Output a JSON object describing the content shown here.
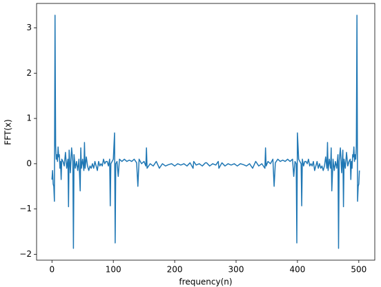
{
  "chart_data": {
    "type": "line",
    "xlabel": "frequency(n)",
    "ylabel": "FFT(x)",
    "xlim": [
      -25.05,
      526.05
    ],
    "ylim": [
      -2.13,
      3.54
    ],
    "xticks": [
      0,
      100,
      200,
      300,
      400,
      500
    ],
    "yticks": [
      {
        "value": -2,
        "label": "−2"
      },
      {
        "value": -1,
        "label": "−1"
      },
      0,
      1,
      2,
      3
    ],
    "series": [
      {
        "color": "#1f77b4",
        "x": [
          0,
          1,
          2,
          3,
          4,
          5,
          6,
          7,
          8,
          9,
          10,
          11,
          12,
          13,
          14,
          15,
          16,
          18,
          20,
          22,
          24,
          26,
          27,
          28,
          30,
          32,
          34,
          35,
          36,
          38,
          40,
          42,
          44,
          46,
          47,
          48,
          50,
          52,
          53,
          54,
          56,
          58,
          60,
          62,
          64,
          66,
          68,
          70,
          72,
          74,
          76,
          78,
          80,
          82,
          84,
          86,
          88,
          90,
          92,
          94,
          95,
          96,
          98,
          100,
          102,
          103,
          104,
          106,
          108,
          110,
          114,
          118,
          122,
          126,
          130,
          134,
          138,
          140,
          142,
          146,
          150,
          153,
          154,
          155,
          160,
          165,
          170,
          175,
          180,
          185,
          190,
          195,
          200,
          205,
          210,
          215,
          220,
          225,
          230,
          231,
          235,
          240,
          245,
          250,
          252,
          257,
          262,
          267,
          271,
          272,
          277,
          282,
          287,
          292,
          297,
          302,
          307,
          312,
          317,
          322,
          327,
          332,
          337,
          342,
          347,
          348,
          349,
          352,
          356,
          360,
          362,
          364,
          368,
          372,
          376,
          380,
          384,
          388,
          392,
          394,
          396,
          398,
          399,
          400,
          402,
          404,
          406,
          407,
          408,
          410,
          412,
          414,
          416,
          418,
          420,
          422,
          424,
          426,
          428,
          430,
          432,
          434,
          436,
          438,
          440,
          442,
          444,
          446,
          448,
          449,
          450,
          452,
          454,
          455,
          456,
          458,
          460,
          462,
          464,
          466,
          467,
          468,
          470,
          472,
          474,
          475,
          476,
          478,
          480,
          482,
          484,
          486,
          487,
          488,
          489,
          490,
          491,
          492,
          493,
          494,
          495,
          496,
          497,
          498,
          499,
          500,
          501
        ],
        "values": [
          -0.35,
          -0.15,
          -0.45,
          -0.5,
          -0.83,
          3.28,
          0.4,
          0.1,
          0.2,
          0.05,
          0.37,
          0.15,
          0.2,
          -0.1,
          0.05,
          -0.35,
          0.1,
          0.05,
          -0.05,
          0.25,
          -0.1,
          0.1,
          -0.95,
          0.3,
          -0.2,
          0.35,
          0.05,
          -1.87,
          0.2,
          -0.1,
          0.05,
          -0.15,
          0.1,
          -0.6,
          0.35,
          -0.1,
          0.1,
          -0.15,
          0.47,
          -0.1,
          0.15,
          -0.05,
          -0.15,
          -0.05,
          -0.1,
          0.0,
          -0.1,
          0.05,
          -0.05,
          -0.15,
          0.05,
          -0.05,
          0.0,
          -0.05,
          0.1,
          0.0,
          0.05,
          0.05,
          -0.05,
          0.1,
          -0.93,
          0.0,
          0.05,
          0.1,
          0.68,
          -1.75,
          0.0,
          0.05,
          -0.28,
          0.1,
          0.05,
          0.1,
          0.05,
          0.08,
          0.05,
          0.1,
          0.02,
          -0.5,
          0.1,
          0.0,
          0.05,
          -0.05,
          0.35,
          -0.1,
          0.0,
          -0.05,
          0.05,
          -0.1,
          0.0,
          -0.05,
          -0.02,
          0.0,
          -0.05,
          0.0,
          -0.03,
          0.0,
          -0.05,
          0.02,
          -0.1,
          0.05,
          -0.03,
          0.0,
          -0.05,
          0.02,
          0.02,
          -0.05,
          0.0,
          -0.03,
          0.05,
          -0.1,
          0.02,
          -0.05,
          0.0,
          -0.03,
          0.0,
          -0.05,
          0.0,
          -0.02,
          -0.05,
          0.0,
          -0.1,
          0.05,
          -0.05,
          0.0,
          -0.1,
          0.35,
          -0.05,
          0.05,
          0.0,
          0.1,
          -0.5,
          0.02,
          0.1,
          0.05,
          0.08,
          0.05,
          0.1,
          0.05,
          0.1,
          -0.28,
          0.05,
          0.0,
          -1.75,
          0.68,
          0.1,
          0.05,
          0.0,
          -0.93,
          0.1,
          -0.05,
          0.05,
          0.05,
          0.0,
          0.1,
          -0.05,
          0.0,
          -0.05,
          0.05,
          -0.15,
          -0.05,
          0.05,
          -0.1,
          0.0,
          -0.1,
          -0.05,
          -0.15,
          -0.05,
          0.15,
          -0.1,
          0.47,
          -0.15,
          0.1,
          -0.1,
          0.35,
          -0.6,
          0.1,
          -0.15,
          0.05,
          -0.1,
          0.2,
          -1.87,
          0.05,
          0.35,
          -0.2,
          0.3,
          -0.95,
          0.1,
          -0.1,
          0.25,
          -0.05,
          0.05,
          0.1,
          -0.35,
          0.05,
          -0.1,
          0.2,
          0.15,
          0.37,
          0.05,
          0.2,
          0.1,
          0.4,
          3.28,
          -0.83,
          -0.5,
          -0.45,
          -0.15
        ]
      }
    ]
  }
}
